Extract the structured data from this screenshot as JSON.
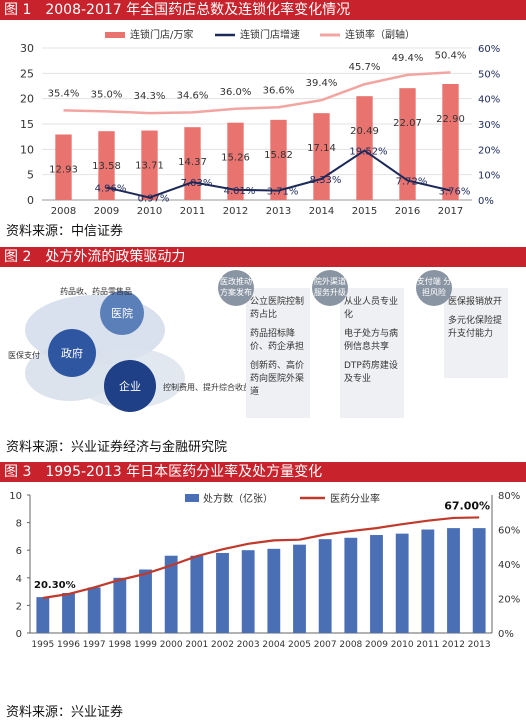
{
  "fig1": {
    "title": "图 1　2008-2017 年全国药店总数及连锁化率变化情况",
    "source": "资料来源：中信证券",
    "legend": {
      "bars": "连锁门店/万家",
      "line_growth": "连锁门店增速",
      "line_ratio": "连锁率（副轴）"
    },
    "left_ticks": [
      "0",
      "5",
      "10",
      "15",
      "20",
      "25",
      "30"
    ],
    "right_ticks": [
      "0%",
      "10%",
      "20%",
      "30%",
      "40%",
      "50%",
      "60%"
    ],
    "colors": {
      "bar": "#e8736f",
      "ratio_line": "#f2a5a0",
      "growth_line": "#1c2a5a"
    }
  },
  "fig2": {
    "title": "图 2　处方外流的政策驱动力",
    "source": "资料来源：兴业证券经济与金融研究院",
    "circles": {
      "hospital": "医院",
      "gov": "政府",
      "enterprise": "企业"
    },
    "notes": {
      "top": "药品收、药品零售品",
      "left": "医保支付",
      "right": "控制费用、提升综合收益"
    },
    "columns": [
      {
        "tag": "医改推动 方案发布",
        "items": [
          "公立医院控制药占比",
          "药品招标降价、药企承担",
          "创新药、高价药向医院外渠道"
        ]
      },
      {
        "tag": "院外渠道 服务升级",
        "items": [
          "从业人员专业化",
          "电子处方与病例信息共享",
          "DTP药房建设及专业"
        ]
      },
      {
        "tag": "支付端 分担风险",
        "items": [
          "医保报销放开",
          "多元化保险提升支付能力"
        ]
      }
    ]
  },
  "fig3": {
    "title": "图 3　1995-2013 年日本医药分业率及处方量变化",
    "source": "资料来源：兴业证券",
    "legend": {
      "bars": "处方数（亿张）",
      "line": "医药分业率"
    },
    "left_ticks": [
      "0",
      "2",
      "4",
      "6",
      "8",
      "10"
    ],
    "right_ticks": [
      "0%",
      "20%",
      "40%",
      "60%",
      "80%"
    ],
    "annotations": {
      "first": "20.30%",
      "last": "67.00%"
    },
    "colors": {
      "bar": "#4a6fb5",
      "line": "#c0392b"
    }
  },
  "chart_data": [
    {
      "type": "bar",
      "title": "2008-2017 年全国药店总数及连锁化率变化情况",
      "categories": [
        "2008",
        "2009",
        "2010",
        "2011",
        "2012",
        "2013",
        "2014",
        "2015",
        "2016",
        "2017"
      ],
      "ylim": [
        0,
        30
      ],
      "y2lim": [
        0,
        0.6
      ],
      "series": [
        {
          "name": "连锁门店/万家",
          "type": "bar",
          "axis": "left",
          "values": [
            12.93,
            13.58,
            13.71,
            14.37,
            15.26,
            15.82,
            17.14,
            20.49,
            22.07,
            22.9
          ],
          "labels": [
            "12.93",
            "13.58",
            "13.71",
            "14.37",
            "15.26",
            "15.82",
            "17.14",
            "20.49",
            "22.07",
            "22.90"
          ]
        },
        {
          "name": "连锁门店增速",
          "type": "line",
          "axis": "right",
          "values": [
            null,
            0.0496,
            0.0097,
            0.0703,
            0.0401,
            0.0371,
            0.0833,
            0.1952,
            0.0772,
            0.0376
          ],
          "labels": [
            "",
            "4.96%",
            "0.97%",
            "7.03%",
            "4.01%",
            "3.71%",
            "8.33%",
            "19.52%",
            "7.72%",
            "3.76%"
          ]
        },
        {
          "name": "连锁率（副轴）",
          "type": "line",
          "axis": "right",
          "values": [
            0.354,
            0.35,
            0.343,
            0.346,
            0.36,
            0.366,
            0.394,
            0.457,
            0.494,
            0.504
          ],
          "labels": [
            "35.4%",
            "35.0%",
            "34.3%",
            "34.6%",
            "36.0%",
            "36.6%",
            "39.4%",
            "45.7%",
            "49.4%",
            "50.4%"
          ]
        }
      ]
    },
    {
      "type": "bar",
      "title": "1995-2013 年日本医药分业率及处方量变化",
      "categories": [
        "1995",
        "1996",
        "1997",
        "1998",
        "1999",
        "2000",
        "2001",
        "2002",
        "2003",
        "2004",
        "2005",
        "2007",
        "2008",
        "2009",
        "2010",
        "2011",
        "2012",
        "2013"
      ],
      "ylim": [
        0,
        10
      ],
      "y2lim": [
        0,
        0.8
      ],
      "series": [
        {
          "name": "处方数（亿张）",
          "type": "bar",
          "axis": "left",
          "values": [
            2.6,
            2.9,
            3.3,
            4.0,
            4.6,
            5.6,
            5.6,
            5.8,
            6.0,
            6.1,
            6.4,
            6.8,
            6.9,
            7.1,
            7.2,
            7.5,
            7.6,
            7.6
          ]
        },
        {
          "name": "医药分业率",
          "type": "line",
          "axis": "right",
          "values": [
            0.203,
            0.226,
            0.264,
            0.308,
            0.343,
            0.392,
            0.445,
            0.485,
            0.517,
            0.537,
            0.541,
            0.571,
            0.591,
            0.608,
            0.631,
            0.651,
            0.667,
            0.67
          ]
        }
      ]
    }
  ]
}
